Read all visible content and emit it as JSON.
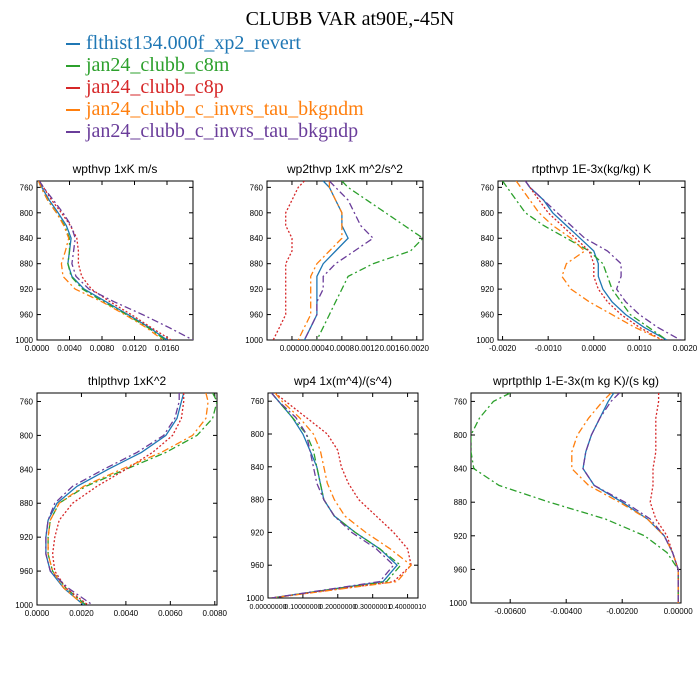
{
  "title": "CLUBB VAR at90E,-45N",
  "legend": [
    {
      "name": "flthist134.000f_xp2_revert",
      "color": "#1f77b4",
      "dash": "solid"
    },
    {
      "name": "jan24_clubb_c8m",
      "color": "#2ca02c",
      "dash": "dashdot"
    },
    {
      "name": "jan24_clubb_c8p",
      "color": "#d62728",
      "dash": "dot"
    },
    {
      "name": "jan24_clubb_c_invrs_tau_bkgndm",
      "color": "#ff7f0e",
      "dash": "dashdot"
    },
    {
      "name": "jan24_clubb_c_invrs_tau_bkgndp",
      "color": "#6a3d9a",
      "dash": "dashdot"
    }
  ],
  "chart_data": [
    {
      "type": "line",
      "title": "wpthvp   1xK m/s",
      "xlim": [
        0.0,
        0.0192
      ],
      "ylim": [
        1000,
        750
      ],
      "x_ticks": [
        "0.0000",
        "0.0040",
        "0.0080",
        "0.0120",
        "0.0160"
      ],
      "y_ticks": [
        "760",
        "800",
        "840",
        "880",
        "920",
        "960",
        "1000"
      ],
      "y": [
        750,
        760,
        780,
        800,
        820,
        840,
        860,
        880,
        900,
        920,
        940,
        960,
        980,
        1000
      ],
      "series": [
        {
          "name": "flthist134.000f_xp2_revert",
          "x": [
            0.0002,
            0.0006,
            0.0015,
            0.0026,
            0.0036,
            0.0042,
            0.004,
            0.0038,
            0.0043,
            0.0058,
            0.0085,
            0.0112,
            0.0138,
            0.016
          ]
        },
        {
          "name": "jan24_clubb_c8m",
          "x": [
            0.0002,
            0.0005,
            0.0013,
            0.0024,
            0.0034,
            0.004,
            0.004,
            0.0038,
            0.0042,
            0.0056,
            0.0082,
            0.011,
            0.0136,
            0.0158
          ]
        },
        {
          "name": "jan24_clubb_c8p",
          "x": [
            0.0003,
            0.0008,
            0.0018,
            0.003,
            0.0041,
            0.0049,
            0.0051,
            0.0051,
            0.0055,
            0.0067,
            0.009,
            0.0116,
            0.014,
            0.0165
          ]
        },
        {
          "name": "jan24_clubb_c_invrs_tau_bkgndm",
          "x": [
            0.0002,
            0.0005,
            0.0013,
            0.0024,
            0.0033,
            0.0039,
            0.0035,
            0.003,
            0.0032,
            0.0047,
            0.008,
            0.0108,
            0.0134,
            0.0155
          ]
        },
        {
          "name": "jan24_clubb_c_invrs_tau_bkgndp",
          "x": [
            0.0003,
            0.0008,
            0.002,
            0.0032,
            0.0042,
            0.0047,
            0.0045,
            0.0043,
            0.0048,
            0.0064,
            0.0095,
            0.013,
            0.0162,
            0.0192
          ]
        }
      ]
    },
    {
      "type": "line",
      "title": "wp2thvp   1xK m^2/s^2",
      "xlim": [
        -0.0004,
        0.0021
      ],
      "ylim": [
        1000,
        750
      ],
      "x_ticks": [
        "0.0000",
        "0.0004",
        "0.0008",
        "0.0012",
        "0.0016",
        "0.0020"
      ],
      "y_ticks": [
        "760",
        "800",
        "840",
        "880",
        "920",
        "960",
        "1000"
      ],
      "y": [
        750,
        760,
        780,
        800,
        820,
        840,
        860,
        880,
        900,
        920,
        940,
        960,
        980,
        1000
      ],
      "series": [
        {
          "name": "flthist134.000f_xp2_revert",
          "x": [
            0.0005,
            0.0006,
            0.0007,
            0.0008,
            0.0008,
            0.0009,
            0.0007,
            0.0005,
            0.0004,
            0.0004,
            0.0004,
            0.0004,
            0.0003,
            0.0002
          ]
        },
        {
          "name": "jan24_clubb_c8m",
          "x": [
            0.0008,
            0.0009,
            0.0012,
            0.0015,
            0.0018,
            0.0021,
            0.0019,
            0.0013,
            0.0009,
            0.0008,
            0.0007,
            0.0006,
            0.0005,
            0.0004
          ]
        },
        {
          "name": "jan24_clubb_c8p",
          "x": [
            0.0002,
            0.0001,
            0.0,
            -0.0001,
            -0.0001,
            0.0,
            0.0,
            -0.0001,
            -0.0001,
            -0.0001,
            -0.0001,
            -0.0001,
            -0.0002,
            -0.0003
          ]
        },
        {
          "name": "jan24_clubb_c_invrs_tau_bkgndm",
          "x": [
            0.0006,
            0.0006,
            0.0007,
            0.0008,
            0.0008,
            0.0008,
            0.0006,
            0.0004,
            0.0003,
            0.0003,
            0.0003,
            0.0003,
            0.0002,
            0.0001
          ]
        },
        {
          "name": "jan24_clubb_c_invrs_tau_bkgndp",
          "x": [
            0.0006,
            0.0007,
            0.0009,
            0.001,
            0.0011,
            0.0013,
            0.001,
            0.0007,
            0.0005,
            0.0005,
            0.0004,
            0.0004,
            0.0003,
            0.0002
          ]
        }
      ]
    },
    {
      "type": "line",
      "title": "rtpthvp   1E-3x(kg/kg) K",
      "xlim": [
        -0.0021,
        0.002
      ],
      "ylim": [
        1000,
        750
      ],
      "x_ticks": [
        "-0.0020",
        "-0.0010",
        "0.0000",
        "0.0010",
        "0.0020"
      ],
      "y_ticks": [
        "760",
        "800",
        "840",
        "880",
        "920",
        "960",
        "1000"
      ],
      "y": [
        750,
        760,
        780,
        800,
        820,
        840,
        860,
        880,
        900,
        920,
        940,
        960,
        980,
        1000
      ],
      "series": [
        {
          "name": "flthist134.000f_xp2_revert",
          "x": [
            -0.0015,
            -0.0014,
            -0.0011,
            -0.0009,
            -0.0006,
            -0.0003,
            0.0,
            0.0001,
            0.0001,
            0.0002,
            0.0004,
            0.0007,
            0.0011,
            0.0016
          ]
        },
        {
          "name": "jan24_clubb_c8m",
          "x": [
            -0.002,
            -0.0019,
            -0.0017,
            -0.0015,
            -0.0011,
            -0.0006,
            -0.0001,
            0.0002,
            0.0003,
            0.0004,
            0.0006,
            0.0008,
            0.0012,
            0.0016
          ]
        },
        {
          "name": "jan24_clubb_c8p",
          "x": [
            -0.0015,
            -0.0014,
            -0.0012,
            -0.001,
            -0.0007,
            -0.0004,
            -0.0001,
            0.0,
            0.0,
            0.0001,
            0.0003,
            0.0006,
            0.001,
            0.0015
          ]
        },
        {
          "name": "jan24_clubb_c_invrs_tau_bkgndm",
          "x": [
            -0.0017,
            -0.0016,
            -0.0014,
            -0.0012,
            -0.0009,
            -0.0005,
            -0.0002,
            -0.0006,
            -0.0007,
            -0.0005,
            -0.0001,
            0.0004,
            0.0009,
            0.0015
          ]
        },
        {
          "name": "jan24_clubb_c_invrs_tau_bkgndp",
          "x": [
            -0.0015,
            -0.0014,
            -0.0011,
            -0.0008,
            -0.0005,
            -0.0002,
            0.0003,
            0.0006,
            0.0006,
            0.0005,
            0.0007,
            0.001,
            0.0014,
            0.0019
          ]
        }
      ]
    },
    {
      "type": "line",
      "title": "thlpthvp   1xK^2",
      "xlim": [
        0.0,
        0.0081
      ],
      "ylim": [
        1000,
        750
      ],
      "x_ticks": [
        "0.0000",
        "0.0020",
        "0.0040",
        "0.0060",
        "0.0080"
      ],
      "y_ticks": [
        "760",
        "800",
        "840",
        "880",
        "920",
        "960",
        "1000"
      ],
      "y": [
        750,
        760,
        780,
        800,
        820,
        840,
        860,
        880,
        900,
        920,
        940,
        960,
        980,
        1000
      ],
      "series": [
        {
          "name": "flthist134.000f_xp2_revert",
          "x": [
            0.0066,
            0.0065,
            0.0063,
            0.0058,
            0.0047,
            0.0032,
            0.0018,
            0.0009,
            0.0005,
            0.0004,
            0.0004,
            0.0006,
            0.0012,
            0.0021
          ]
        },
        {
          "name": "jan24_clubb_c8m",
          "x": [
            0.0079,
            0.0081,
            0.0079,
            0.0072,
            0.0058,
            0.004,
            0.0022,
            0.001,
            0.0006,
            0.0005,
            0.0005,
            0.0007,
            0.0013,
            0.0022
          ]
        },
        {
          "name": "jan24_clubb_c8p",
          "x": [
            0.0066,
            0.0066,
            0.0065,
            0.0061,
            0.0052,
            0.004,
            0.0027,
            0.0016,
            0.001,
            0.0008,
            0.0007,
            0.0008,
            0.0013,
            0.0023
          ]
        },
        {
          "name": "jan24_clubb_c_invrs_tau_bkgndm",
          "x": [
            0.0076,
            0.0077,
            0.0076,
            0.007,
            0.0056,
            0.0038,
            0.0021,
            0.001,
            0.0006,
            0.0005,
            0.0005,
            0.0007,
            0.0012,
            0.0021
          ]
        },
        {
          "name": "jan24_clubb_c_invrs_tau_bkgndp",
          "x": [
            0.0064,
            0.0064,
            0.0062,
            0.0057,
            0.0045,
            0.003,
            0.0016,
            0.0008,
            0.0005,
            0.0004,
            0.0004,
            0.0006,
            0.0014,
            0.0025
          ]
        }
      ]
    },
    {
      "type": "line",
      "title": "wp4   1x(m^4)/(s^4)",
      "xlim": [
        0.0,
        0.4299
      ],
      "ylim": [
        1000,
        750
      ],
      "x_ticks": [
        "0.00000000",
        "0.10000000",
        "0.20000000",
        "0.30000001",
        "0.40000010"
      ],
      "y_ticks": [
        "760",
        "800",
        "840",
        "880",
        "920",
        "960",
        "1000"
      ],
      "y": [
        750,
        760,
        780,
        800,
        820,
        840,
        860,
        880,
        900,
        920,
        940,
        960,
        980,
        1000
      ],
      "series": [
        {
          "name": "flthist134.000f_xp2_revert",
          "x": [
            0.01,
            0.03,
            0.07,
            0.1,
            0.12,
            0.14,
            0.15,
            0.16,
            0.19,
            0.25,
            0.32,
            0.37,
            0.33,
            0.01
          ]
        },
        {
          "name": "jan24_clubb_c8m",
          "x": [
            0.01,
            0.03,
            0.07,
            0.11,
            0.13,
            0.14,
            0.15,
            0.16,
            0.19,
            0.25,
            0.32,
            0.38,
            0.34,
            0.01
          ]
        },
        {
          "name": "jan24_clubb_c8p",
          "x": [
            0.02,
            0.05,
            0.11,
            0.17,
            0.2,
            0.21,
            0.23,
            0.26,
            0.31,
            0.36,
            0.4,
            0.41,
            0.36,
            0.01
          ]
        },
        {
          "name": "jan24_clubb_c_invrs_tau_bkgndm",
          "x": [
            0.02,
            0.04,
            0.09,
            0.13,
            0.15,
            0.16,
            0.17,
            0.19,
            0.22,
            0.28,
            0.35,
            0.41,
            0.37,
            0.01
          ]
        },
        {
          "name": "jan24_clubb_c_invrs_tau_bkgndp",
          "x": [
            0.01,
            0.03,
            0.08,
            0.11,
            0.12,
            0.13,
            0.14,
            0.16,
            0.19,
            0.24,
            0.31,
            0.36,
            0.32,
            0.01
          ]
        }
      ]
    },
    {
      "type": "line",
      "title": "wprtpthlp   1-E-3x(m kg K)/(s kg)",
      "xlim": [
        -0.0074,
        0.0001
      ],
      "ylim": [
        1000,
        750
      ],
      "x_ticks": [
        "-0.00600",
        "-0.00400",
        "-0.00200",
        "0.00000"
      ],
      "y_ticks": [
        "760",
        "800",
        "840",
        "880",
        "920",
        "960",
        "1000"
      ],
      "y": [
        750,
        760,
        780,
        800,
        820,
        840,
        860,
        880,
        900,
        920,
        940,
        960,
        980,
        1000
      ],
      "series": [
        {
          "name": "flthist134.000f_xp2_revert",
          "x": [
            -0.0023,
            -0.0025,
            -0.0028,
            -0.0031,
            -0.0033,
            -0.0034,
            -0.003,
            -0.002,
            -0.0011,
            -0.0005,
            -0.0002,
            0.0,
            0.0,
            0.0
          ]
        },
        {
          "name": "jan24_clubb_c8m",
          "x": [
            -0.006,
            -0.0066,
            -0.0071,
            -0.0074,
            -0.0074,
            -0.0073,
            -0.0064,
            -0.0046,
            -0.0026,
            -0.0012,
            -0.0004,
            0.0,
            0.0,
            0.0
          ]
        },
        {
          "name": "jan24_clubb_c8p",
          "x": [
            -0.0007,
            -0.0007,
            -0.0008,
            -0.0008,
            -0.0008,
            -0.0009,
            -0.0009,
            -0.001,
            -0.0008,
            -0.0004,
            -0.0002,
            0.0,
            0.0,
            0.0
          ]
        },
        {
          "name": "jan24_clubb_c_invrs_tau_bkgndm",
          "x": [
            -0.0024,
            -0.0027,
            -0.0032,
            -0.0036,
            -0.0038,
            -0.0038,
            -0.0032,
            -0.0021,
            -0.0011,
            -0.0005,
            -0.0002,
            0.0,
            0.0,
            0.0
          ]
        },
        {
          "name": "jan24_clubb_c_invrs_tau_bkgndp",
          "x": [
            -0.0021,
            -0.0024,
            -0.0028,
            -0.0031,
            -0.0033,
            -0.0034,
            -0.003,
            -0.0019,
            -0.001,
            -0.0005,
            -0.0002,
            0.0,
            0.0,
            0.0
          ]
        }
      ]
    }
  ]
}
